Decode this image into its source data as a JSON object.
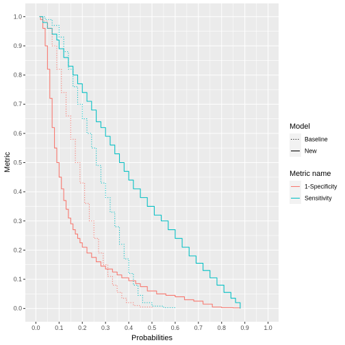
{
  "chart_data": {
    "type": "line",
    "xlabel": "Probabilities",
    "ylabel": "Metric",
    "xlim": [
      0.0,
      1.0
    ],
    "ylim": [
      0.0,
      1.0
    ],
    "x_ticks": [
      "0.0",
      "0.1",
      "0.2",
      "0.3",
      "0.4",
      "0.5",
      "0.6",
      "0.7",
      "0.8",
      "0.9",
      "1.0"
    ],
    "y_ticks": [
      "0.0",
      "0.1",
      "0.2",
      "0.3",
      "0.4",
      "0.5",
      "0.6",
      "0.7",
      "0.8",
      "0.9",
      "1.0"
    ],
    "grid": true,
    "legend_position": "right",
    "legends": [
      {
        "title": "Model",
        "entries": [
          {
            "label": "Baseline",
            "linetype": "dotted"
          },
          {
            "label": "New",
            "linetype": "solid"
          }
        ]
      },
      {
        "title": "Metric name",
        "entries": [
          {
            "label": "1-Specificity",
            "color": "#F8766D"
          },
          {
            "label": "Sensitivity",
            "color": "#00BFC4"
          }
        ]
      }
    ],
    "series": [
      {
        "metric": "1-Specificity",
        "model": "New",
        "color": "#F8766D",
        "linetype": "solid",
        "points": [
          [
            0.015,
            1.0
          ],
          [
            0.02,
            0.99
          ],
          [
            0.03,
            0.96
          ],
          [
            0.04,
            0.9
          ],
          [
            0.05,
            0.82
          ],
          [
            0.06,
            0.72
          ],
          [
            0.07,
            0.62
          ],
          [
            0.08,
            0.55
          ],
          [
            0.09,
            0.5
          ],
          [
            0.1,
            0.45
          ],
          [
            0.11,
            0.41
          ],
          [
            0.12,
            0.37
          ],
          [
            0.13,
            0.34
          ],
          [
            0.14,
            0.31
          ],
          [
            0.15,
            0.29
          ],
          [
            0.16,
            0.27
          ],
          [
            0.17,
            0.255
          ],
          [
            0.18,
            0.24
          ],
          [
            0.19,
            0.225
          ],
          [
            0.2,
            0.21
          ],
          [
            0.22,
            0.19
          ],
          [
            0.24,
            0.175
          ],
          [
            0.26,
            0.16
          ],
          [
            0.28,
            0.145
          ],
          [
            0.3,
            0.135
          ],
          [
            0.33,
            0.125
          ],
          [
            0.35,
            0.115
          ],
          [
            0.37,
            0.105
          ],
          [
            0.4,
            0.095
          ],
          [
            0.43,
            0.085
          ],
          [
            0.45,
            0.075
          ],
          [
            0.48,
            0.06
          ],
          [
            0.52,
            0.05
          ],
          [
            0.56,
            0.045
          ],
          [
            0.6,
            0.04
          ],
          [
            0.64,
            0.03
          ],
          [
            0.68,
            0.025
          ],
          [
            0.72,
            0.015
          ],
          [
            0.76,
            0.005
          ],
          [
            0.8,
            0.003
          ],
          [
            0.85,
            0.002
          ],
          [
            0.88,
            0.0
          ]
        ]
      },
      {
        "metric": "Sensitivity",
        "model": "New",
        "color": "#00BFC4",
        "linetype": "solid",
        "points": [
          [
            0.015,
            1.0
          ],
          [
            0.03,
            0.98
          ],
          [
            0.05,
            0.96
          ],
          [
            0.07,
            0.94
          ],
          [
            0.09,
            0.92
          ],
          [
            0.1,
            0.89
          ],
          [
            0.12,
            0.86
          ],
          [
            0.14,
            0.83
          ],
          [
            0.16,
            0.8
          ],
          [
            0.18,
            0.77
          ],
          [
            0.2,
            0.74
          ],
          [
            0.22,
            0.71
          ],
          [
            0.24,
            0.68
          ],
          [
            0.26,
            0.64
          ],
          [
            0.28,
            0.62
          ],
          [
            0.3,
            0.59
          ],
          [
            0.32,
            0.56
          ],
          [
            0.34,
            0.53
          ],
          [
            0.36,
            0.5
          ],
          [
            0.38,
            0.47
          ],
          [
            0.4,
            0.44
          ],
          [
            0.42,
            0.41
          ],
          [
            0.45,
            0.38
          ],
          [
            0.48,
            0.35
          ],
          [
            0.51,
            0.32
          ],
          [
            0.54,
            0.3
          ],
          [
            0.57,
            0.27
          ],
          [
            0.6,
            0.24
          ],
          [
            0.63,
            0.21
          ],
          [
            0.66,
            0.18
          ],
          [
            0.69,
            0.155
          ],
          [
            0.72,
            0.13
          ],
          [
            0.75,
            0.105
          ],
          [
            0.78,
            0.08
          ],
          [
            0.81,
            0.055
          ],
          [
            0.84,
            0.035
          ],
          [
            0.86,
            0.02
          ],
          [
            0.88,
            0.0
          ]
        ]
      },
      {
        "metric": "1-Specificity",
        "model": "Baseline",
        "color": "#F8766D",
        "linetype": "dotted",
        "points": [
          [
            0.015,
            1.0
          ],
          [
            0.03,
            0.985
          ],
          [
            0.05,
            0.96
          ],
          [
            0.07,
            0.9
          ],
          [
            0.09,
            0.82
          ],
          [
            0.11,
            0.74
          ],
          [
            0.13,
            0.66
          ],
          [
            0.15,
            0.58
          ],
          [
            0.17,
            0.5
          ],
          [
            0.19,
            0.43
          ],
          [
            0.21,
            0.36
          ],
          [
            0.23,
            0.3
          ],
          [
            0.25,
            0.24
          ],
          [
            0.27,
            0.19
          ],
          [
            0.29,
            0.15
          ],
          [
            0.31,
            0.11
          ],
          [
            0.33,
            0.08
          ],
          [
            0.35,
            0.055
          ],
          [
            0.37,
            0.035
          ],
          [
            0.39,
            0.02
          ],
          [
            0.42,
            0.01
          ],
          [
            0.45,
            0.005
          ],
          [
            0.5,
            0.0
          ]
        ]
      },
      {
        "metric": "Sensitivity",
        "model": "Baseline",
        "color": "#00BFC4",
        "linetype": "dotted",
        "points": [
          [
            0.015,
            1.0
          ],
          [
            0.04,
            0.99
          ],
          [
            0.07,
            0.97
          ],
          [
            0.1,
            0.93
          ],
          [
            0.12,
            0.88
          ],
          [
            0.14,
            0.82
          ],
          [
            0.16,
            0.76
          ],
          [
            0.18,
            0.7
          ],
          [
            0.2,
            0.65
          ],
          [
            0.22,
            0.6
          ],
          [
            0.24,
            0.55
          ],
          [
            0.26,
            0.49
          ],
          [
            0.28,
            0.43
          ],
          [
            0.3,
            0.38
          ],
          [
            0.32,
            0.33
          ],
          [
            0.34,
            0.28
          ],
          [
            0.36,
            0.22
          ],
          [
            0.38,
            0.17
          ],
          [
            0.4,
            0.12
          ],
          [
            0.42,
            0.08
          ],
          [
            0.44,
            0.045
          ],
          [
            0.46,
            0.02
          ],
          [
            0.5,
            0.008
          ],
          [
            0.55,
            0.003
          ],
          [
            0.6,
            0.0
          ]
        ]
      }
    ]
  }
}
